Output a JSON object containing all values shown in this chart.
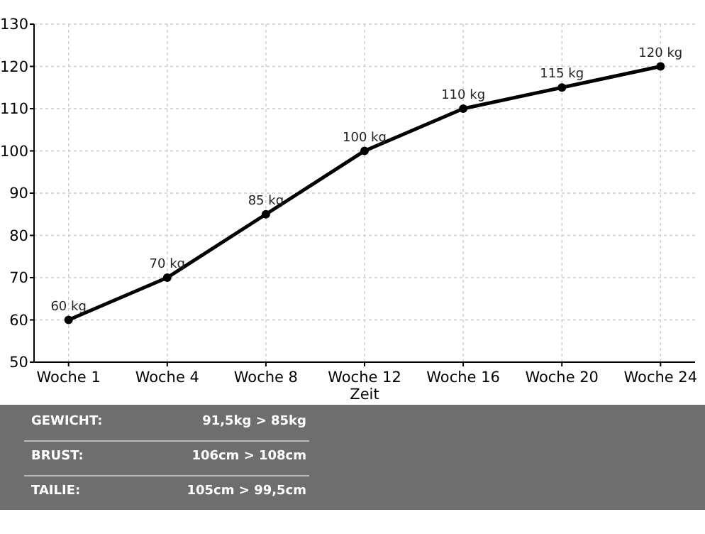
{
  "chart_data": {
    "type": "line",
    "xlabel": "Zeit",
    "categories": [
      "Woche 1",
      "Woche 4",
      "Woche 8",
      "Woche 12",
      "Woche 16",
      "Woche 20",
      "Woche 24"
    ],
    "series": [
      {
        "color": "#000000",
        "values": [
          60,
          70,
          85,
          100,
          110,
          115,
          120
        ],
        "value_labels": [
          "60 kg",
          "70 kg",
          "85 kg",
          "100 kg",
          "110 kg",
          "115 kg",
          "120 kg"
        ]
      }
    ],
    "ylim": [
      50,
      130
    ],
    "yticks": [
      50,
      60,
      70,
      80,
      90,
      100,
      110,
      120,
      130
    ],
    "grid": true,
    "marker": "circle",
    "line_style": "solid",
    "annotations": [
      "GEWICHT:",
      "91,5kg > 85kg",
      "BRUST:",
      "106cm > 108cm",
      "TAILIE:",
      "105cm > 99,5cm"
    ]
  }
}
